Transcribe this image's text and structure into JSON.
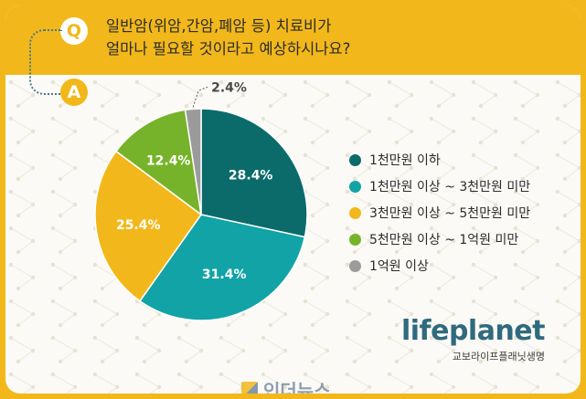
{
  "question": {
    "badge": "Q",
    "line1": "일반암(위암,간암,폐암 등) 치료비가",
    "line2": "얼마나 필요할 것이라고 예상하시나요?"
  },
  "answer": {
    "badge": "A"
  },
  "chart_data": {
    "type": "pie",
    "title": "",
    "slices": [
      {
        "label": "1천만원 이하",
        "value": 28.4,
        "value_label": "28.4%",
        "color": "#0b6b6b"
      },
      {
        "label": "1천만원 이상 ~ 3천만원 미만",
        "value": 31.4,
        "value_label": "31.4%",
        "color": "#12a3a6"
      },
      {
        "label": "3천만원 이상 ~ 5천만원 미만",
        "value": 25.4,
        "value_label": "25.4%",
        "color": "#f2b81b"
      },
      {
        "label": "5천만원 이상 ~ 1억원 미만",
        "value": 12.4,
        "value_label": "12.4%",
        "color": "#77b32a"
      },
      {
        "label": "1억원 이상",
        "value": 2.4,
        "value_label": "2.4%",
        "color": "#9b9b9b"
      }
    ],
    "start": "12 o'clock, clockwise",
    "legend_position": "right"
  },
  "brand": {
    "logo": "lifeplanet",
    "subtitle": "교보라이프플래닛생명"
  },
  "watermark": {
    "text": "인더뉴스"
  }
}
